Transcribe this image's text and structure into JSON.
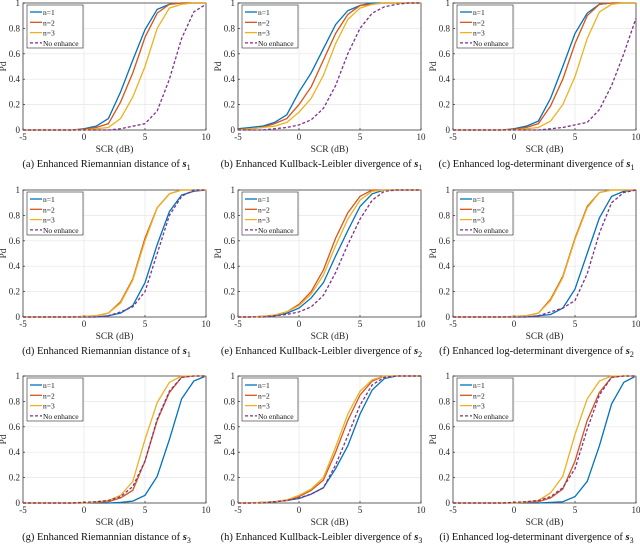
{
  "colors": {
    "n=1": "#0072BD",
    "n=2": "#D95319",
    "n=3": "#EDB120",
    "No enhance": "#7E2F8E"
  },
  "chart_data": [
    {
      "type": "line",
      "panel": "a",
      "caption": "(a) Enhanced Riemannian distance of",
      "symbol": "s",
      "subscript": "1",
      "xlabel": "SCR (dB)",
      "ylabel": "Pd",
      "xlim": [
        -5,
        10
      ],
      "ylim": [
        0,
        1
      ],
      "xticks": [
        "-5",
        "0",
        "5",
        "10"
      ],
      "yticks": [
        "0",
        "0.2",
        "0.4",
        "0.6",
        "0.8",
        "1"
      ],
      "grid": true,
      "legend": "top-left",
      "x": [
        -5,
        -4,
        -3,
        -2,
        -1,
        0,
        1,
        2,
        3,
        4,
        5,
        6,
        7,
        8,
        9,
        10
      ],
      "series": [
        {
          "name": "n=1",
          "values": [
            0,
            0,
            0,
            0,
            0,
            0.01,
            0.03,
            0.09,
            0.3,
            0.55,
            0.79,
            0.95,
            0.99,
            1,
            1,
            1
          ]
        },
        {
          "name": "n=2",
          "values": [
            0,
            0,
            0,
            0,
            0,
            0.005,
            0.02,
            0.05,
            0.22,
            0.45,
            0.73,
            0.92,
            0.99,
            1,
            1,
            1
          ]
        },
        {
          "name": "n=3",
          "values": [
            0,
            0,
            0,
            0,
            0,
            0,
            0.01,
            0.02,
            0.09,
            0.26,
            0.5,
            0.8,
            0.96,
            0.99,
            1,
            1
          ]
        },
        {
          "name": "No enhance",
          "values": [
            0,
            0,
            0,
            0,
            0,
            0,
            0,
            0,
            0.01,
            0.03,
            0.05,
            0.15,
            0.4,
            0.72,
            0.93,
            0.99
          ]
        }
      ]
    },
    {
      "type": "line",
      "panel": "b",
      "caption": "(b) Enhanced Kullback-Leibler divergence of",
      "symbol": "s",
      "subscript": "1",
      "xlabel": "SCR (dB)",
      "ylabel": "Pd",
      "xlim": [
        -5,
        10
      ],
      "ylim": [
        0,
        1
      ],
      "xticks": [
        "-5",
        "0",
        "5",
        "10"
      ],
      "yticks": [
        "0",
        "0.2",
        "0.4",
        "0.6",
        "0.8",
        "1"
      ],
      "grid": true,
      "legend": "top-left",
      "x": [
        -5,
        -4,
        -3,
        -2,
        -1,
        0,
        1,
        2,
        3,
        4,
        5,
        6,
        7,
        8,
        9,
        10
      ],
      "series": [
        {
          "name": "n=1",
          "values": [
            0.01,
            0.02,
            0.03,
            0.06,
            0.12,
            0.3,
            0.45,
            0.64,
            0.83,
            0.94,
            0.98,
            1,
            1,
            1,
            1,
            1
          ]
        },
        {
          "name": "n=2",
          "values": [
            0.005,
            0.01,
            0.02,
            0.05,
            0.09,
            0.2,
            0.34,
            0.55,
            0.76,
            0.91,
            0.98,
            0.99,
            1,
            1,
            1,
            1
          ]
        },
        {
          "name": "n=3",
          "values": [
            0,
            0.01,
            0.02,
            0.03,
            0.06,
            0.14,
            0.25,
            0.43,
            0.68,
            0.87,
            0.96,
            0.99,
            1,
            1,
            1,
            1
          ]
        },
        {
          "name": "No enhance",
          "values": [
            0,
            0,
            0,
            0.01,
            0.02,
            0.04,
            0.08,
            0.17,
            0.35,
            0.6,
            0.8,
            0.92,
            0.97,
            0.99,
            1,
            1
          ]
        }
      ]
    },
    {
      "type": "line",
      "panel": "c",
      "caption": "(c) Enhanced log-determinant divergence of",
      "symbol": "s",
      "subscript": "1",
      "xlabel": "SCR (dB)",
      "ylabel": "Pd",
      "xlim": [
        -5,
        10
      ],
      "ylim": [
        0,
        1
      ],
      "xticks": [
        "-5",
        "0",
        "5",
        "10"
      ],
      "yticks": [
        "0",
        "0.2",
        "0.4",
        "0.6",
        "0.8",
        "1"
      ],
      "grid": true,
      "legend": "top-left",
      "x": [
        -5,
        -4,
        -3,
        -2,
        -1,
        0,
        1,
        2,
        3,
        4,
        5,
        6,
        7,
        8,
        9,
        10
      ],
      "series": [
        {
          "name": "n=1",
          "values": [
            0,
            0,
            0,
            0,
            0,
            0.01,
            0.03,
            0.07,
            0.25,
            0.5,
            0.76,
            0.92,
            0.99,
            1,
            1,
            1
          ]
        },
        {
          "name": "n=2",
          "values": [
            0,
            0,
            0,
            0,
            0,
            0.005,
            0.02,
            0.05,
            0.19,
            0.4,
            0.68,
            0.9,
            0.99,
            1,
            1,
            1
          ]
        },
        {
          "name": "n=3",
          "values": [
            0,
            0,
            0,
            0,
            0,
            0,
            0.01,
            0.02,
            0.07,
            0.2,
            0.42,
            0.72,
            0.93,
            0.99,
            1,
            1
          ]
        },
        {
          "name": "No enhance",
          "values": [
            0,
            0,
            0,
            0,
            0,
            0,
            0,
            0,
            0.01,
            0.02,
            0.04,
            0.06,
            0.16,
            0.35,
            0.6,
            0.88
          ]
        }
      ]
    },
    {
      "type": "line",
      "panel": "d",
      "caption": "(d) Enhanced Riemannian distance of",
      "symbol": "s",
      "subscript": "1",
      "xlabel": "SCR (dB)",
      "ylabel": "Pd",
      "xlim": [
        -5,
        10
      ],
      "ylim": [
        0,
        1
      ],
      "xticks": [
        "-5",
        "0",
        "5",
        "10"
      ],
      "yticks": [
        "0",
        "0.2",
        "0.4",
        "0.6",
        "0.8",
        "1"
      ],
      "grid": true,
      "legend": "top-left",
      "x": [
        -5,
        -4,
        -3,
        -2,
        -1,
        0,
        1,
        2,
        3,
        4,
        5,
        6,
        7,
        8,
        9,
        10
      ],
      "series": [
        {
          "name": "n=1",
          "values": [
            0,
            0,
            0,
            0,
            0,
            0,
            0,
            0.01,
            0.03,
            0.09,
            0.27,
            0.57,
            0.83,
            0.96,
            0.99,
            1
          ]
        },
        {
          "name": "n=2",
          "values": [
            0,
            0,
            0,
            0,
            0,
            0.005,
            0.01,
            0.03,
            0.12,
            0.3,
            0.62,
            0.86,
            0.97,
            1,
            1,
            1
          ]
        },
        {
          "name": "n=3",
          "values": [
            0,
            0,
            0,
            0,
            0,
            0.005,
            0.01,
            0.03,
            0.11,
            0.29,
            0.6,
            0.86,
            0.97,
            1,
            1,
            1
          ]
        },
        {
          "name": "No enhance",
          "values": [
            0,
            0,
            0,
            0,
            0,
            0,
            0,
            0.01,
            0.04,
            0.08,
            0.2,
            0.5,
            0.8,
            0.95,
            1,
            1
          ]
        }
      ]
    },
    {
      "type": "line",
      "panel": "e",
      "caption": "(e) Enhanced Kullback-Leibler divergence of",
      "symbol": "s",
      "subscript": "2",
      "xlabel": "SCR (dB)",
      "ylabel": "Pd",
      "xlim": [
        -5,
        10
      ],
      "ylim": [
        0,
        1
      ],
      "xticks": [
        "-5",
        "0",
        "5",
        "10"
      ],
      "yticks": [
        "0",
        "0.2",
        "0.4",
        "0.6",
        "0.8",
        "1"
      ],
      "grid": true,
      "legend": "top-left",
      "x": [
        -5,
        -4,
        -3,
        -2,
        -1,
        0,
        1,
        2,
        3,
        4,
        5,
        6,
        7,
        8,
        9,
        10
      ],
      "series": [
        {
          "name": "n=1",
          "values": [
            0,
            0,
            0.005,
            0.01,
            0.03,
            0.07,
            0.15,
            0.27,
            0.48,
            0.68,
            0.87,
            0.97,
            1,
            1,
            1,
            1
          ]
        },
        {
          "name": "n=2",
          "values": [
            0,
            0,
            0.005,
            0.015,
            0.04,
            0.1,
            0.2,
            0.37,
            0.62,
            0.82,
            0.95,
            1,
            1,
            1,
            1,
            1
          ]
        },
        {
          "name": "n=3",
          "values": [
            0,
            0,
            0.005,
            0.015,
            0.04,
            0.09,
            0.18,
            0.33,
            0.56,
            0.77,
            0.92,
            0.99,
            1,
            1,
            1,
            1
          ]
        },
        {
          "name": "No enhance",
          "values": [
            0,
            0,
            0,
            0.01,
            0.02,
            0.04,
            0.08,
            0.17,
            0.35,
            0.57,
            0.77,
            0.92,
            0.99,
            1,
            1,
            1
          ]
        }
      ]
    },
    {
      "type": "line",
      "panel": "f",
      "caption": "(f) Enhanced log-determinant divergence of",
      "symbol": "s",
      "subscript": "2",
      "xlabel": "SCR (dB)",
      "ylabel": "Pd",
      "xlim": [
        -5,
        10
      ],
      "ylim": [
        0,
        1
      ],
      "xticks": [
        "-5",
        "0",
        "5",
        "10"
      ],
      "yticks": [
        "0",
        "0.2",
        "0.4",
        "0.6",
        "0.8",
        "1"
      ],
      "grid": true,
      "legend": "top-left",
      "x": [
        -5,
        -4,
        -3,
        -2,
        -1,
        0,
        1,
        2,
        3,
        4,
        5,
        6,
        7,
        8,
        9,
        10
      ],
      "series": [
        {
          "name": "n=1",
          "values": [
            0,
            0,
            0,
            0,
            0,
            0,
            0,
            0.01,
            0.02,
            0.07,
            0.22,
            0.5,
            0.78,
            0.95,
            0.99,
            1
          ]
        },
        {
          "name": "n=2",
          "values": [
            0,
            0,
            0,
            0,
            0,
            0.005,
            0.01,
            0.03,
            0.14,
            0.32,
            0.62,
            0.87,
            0.98,
            1,
            1,
            1
          ]
        },
        {
          "name": "n=3",
          "values": [
            0,
            0,
            0,
            0,
            0,
            0.005,
            0.01,
            0.03,
            0.13,
            0.31,
            0.61,
            0.86,
            0.98,
            1,
            1,
            1
          ]
        },
        {
          "name": "No enhance",
          "values": [
            0,
            0,
            0,
            0,
            0,
            0,
            0,
            0.01,
            0.04,
            0.07,
            0.13,
            0.34,
            0.66,
            0.9,
            0.98,
            1
          ]
        }
      ]
    },
    {
      "type": "line",
      "panel": "g",
      "caption": "(g) Enhanced Riemannian distance of",
      "symbol": "s",
      "subscript": "3",
      "xlabel": "SCR (dB)",
      "ylabel": "Pd",
      "xlim": [
        -5,
        10
      ],
      "ylim": [
        0,
        1
      ],
      "xticks": [
        "-5",
        "0",
        "5",
        "10"
      ],
      "yticks": [
        "0",
        "0.2",
        "0.4",
        "0.6",
        "0.8",
        "1"
      ],
      "grid": true,
      "legend": "top-left",
      "x": [
        -5,
        -4,
        -3,
        -2,
        -1,
        0,
        1,
        2,
        3,
        4,
        5,
        6,
        7,
        8,
        9,
        10
      ],
      "series": [
        {
          "name": "n=1",
          "values": [
            0,
            0,
            0,
            0,
            0,
            0,
            0,
            0,
            0.005,
            0.015,
            0.06,
            0.21,
            0.5,
            0.82,
            0.96,
            1
          ]
        },
        {
          "name": "n=2",
          "values": [
            0,
            0,
            0,
            0,
            0,
            0,
            0.005,
            0.01,
            0.04,
            0.1,
            0.33,
            0.65,
            0.87,
            0.99,
            1,
            1
          ]
        },
        {
          "name": "n=3",
          "values": [
            0,
            0,
            0,
            0,
            0,
            0,
            0.01,
            0.02,
            0.06,
            0.17,
            0.5,
            0.79,
            0.95,
            1,
            1,
            1
          ]
        },
        {
          "name": "No enhance",
          "values": [
            0,
            0,
            0,
            0,
            0,
            0.005,
            0.01,
            0.02,
            0.05,
            0.13,
            0.33,
            0.66,
            0.88,
            0.99,
            1,
            1
          ]
        }
      ]
    },
    {
      "type": "line",
      "panel": "h",
      "caption": "(h) Enhanced Kullback-Leibler divergence of",
      "symbol": "s",
      "subscript": "3",
      "xlabel": "SCR (dB)",
      "ylabel": "Pd",
      "xlim": [
        -5,
        10
      ],
      "ylim": [
        0,
        1
      ],
      "xticks": [
        "-5",
        "0",
        "5",
        "10"
      ],
      "yticks": [
        "0",
        "0.2",
        "0.4",
        "0.6",
        "0.8",
        "1"
      ],
      "grid": true,
      "legend": "top-left",
      "x": [
        -5,
        -4,
        -3,
        -2,
        -1,
        0,
        1,
        2,
        3,
        4,
        5,
        6,
        7,
        8,
        9,
        10
      ],
      "series": [
        {
          "name": "n=1",
          "values": [
            0,
            0,
            0.005,
            0.01,
            0.02,
            0.035,
            0.07,
            0.12,
            0.27,
            0.45,
            0.7,
            0.89,
            0.98,
            1,
            1,
            1
          ]
        },
        {
          "name": "n=2",
          "values": [
            0,
            0,
            0.005,
            0.01,
            0.02,
            0.05,
            0.1,
            0.18,
            0.4,
            0.65,
            0.85,
            0.96,
            1,
            1,
            1,
            1
          ]
        },
        {
          "name": "n=3",
          "values": [
            0,
            0,
            0.005,
            0.01,
            0.025,
            0.06,
            0.11,
            0.2,
            0.44,
            0.7,
            0.88,
            0.97,
            1,
            1,
            1,
            1
          ]
        },
        {
          "name": "No enhance",
          "values": [
            0,
            0,
            0,
            0.01,
            0.02,
            0.04,
            0.07,
            0.12,
            0.3,
            0.53,
            0.77,
            0.93,
            0.99,
            1,
            1,
            1
          ]
        }
      ]
    },
    {
      "type": "line",
      "panel": "i",
      "caption": "(i) Enhanced log-determinant divergence of",
      "symbol": "s",
      "subscript": "3",
      "xlabel": "SCR (dB)",
      "ylabel": "Pd",
      "xlim": [
        -5,
        10
      ],
      "ylim": [
        0,
        1
      ],
      "xticks": [
        "-5",
        "0",
        "5",
        "10"
      ],
      "yticks": [
        "0",
        "0.2",
        "0.4",
        "0.6",
        "0.8",
        "1"
      ],
      "grid": true,
      "legend": "top-left",
      "x": [
        -5,
        -4,
        -3,
        -2,
        -1,
        0,
        1,
        2,
        3,
        4,
        5,
        6,
        7,
        8,
        9,
        10
      ],
      "series": [
        {
          "name": "n=1",
          "values": [
            0,
            0,
            0,
            0,
            0,
            0,
            0,
            0,
            0.005,
            0.01,
            0.05,
            0.17,
            0.45,
            0.78,
            0.95,
            1
          ]
        },
        {
          "name": "n=2",
          "values": [
            0,
            0,
            0,
            0,
            0,
            0,
            0.005,
            0.01,
            0.04,
            0.11,
            0.33,
            0.65,
            0.87,
            0.99,
            1,
            1
          ]
        },
        {
          "name": "n=3",
          "values": [
            0,
            0,
            0,
            0,
            0,
            0,
            0.01,
            0.02,
            0.08,
            0.21,
            0.54,
            0.82,
            0.96,
            1,
            1,
            1
          ]
        },
        {
          "name": "No enhance",
          "values": [
            0,
            0,
            0,
            0,
            0,
            0.005,
            0.01,
            0.02,
            0.05,
            0.12,
            0.27,
            0.58,
            0.85,
            0.99,
            1,
            1
          ]
        }
      ]
    }
  ]
}
